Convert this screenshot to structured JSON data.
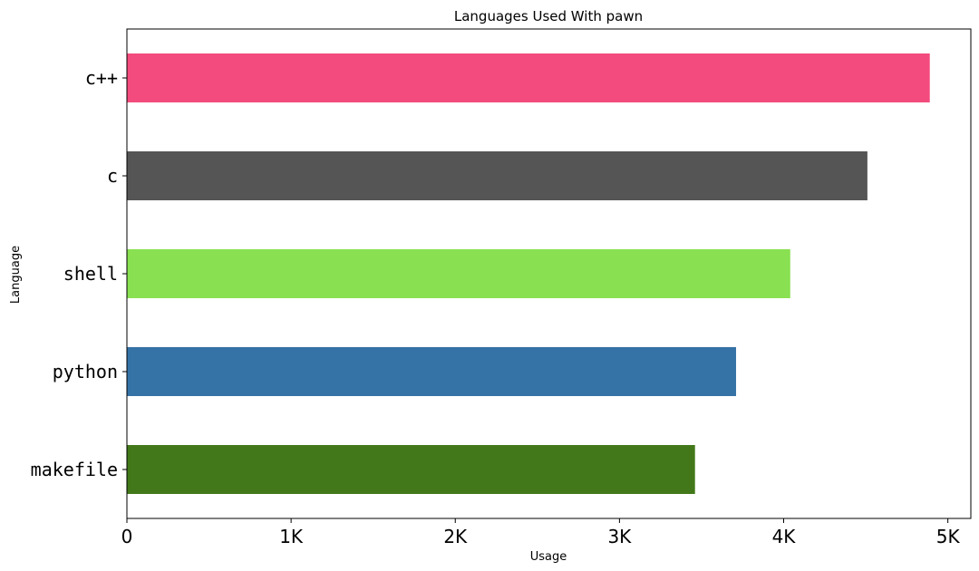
{
  "chart_data": {
    "type": "bar",
    "orientation": "horizontal",
    "title": "Languages Used With pawn",
    "xlabel": "Usage",
    "ylabel": "Language",
    "categories": [
      "c++",
      "c",
      "shell",
      "python",
      "makefile"
    ],
    "values": [
      4890,
      4510,
      4040,
      3710,
      3460
    ],
    "colors": [
      "#f34b7d",
      "#555555",
      "#89e051",
      "#3572a5",
      "#427819"
    ],
    "xlim": [
      0,
      5140
    ],
    "xticks": [
      0,
      1000,
      2000,
      3000,
      4000,
      5000
    ],
    "xtick_labels": [
      "0",
      "1K",
      "2K",
      "3K",
      "4K",
      "5K"
    ],
    "grid": false,
    "legend": "none"
  }
}
